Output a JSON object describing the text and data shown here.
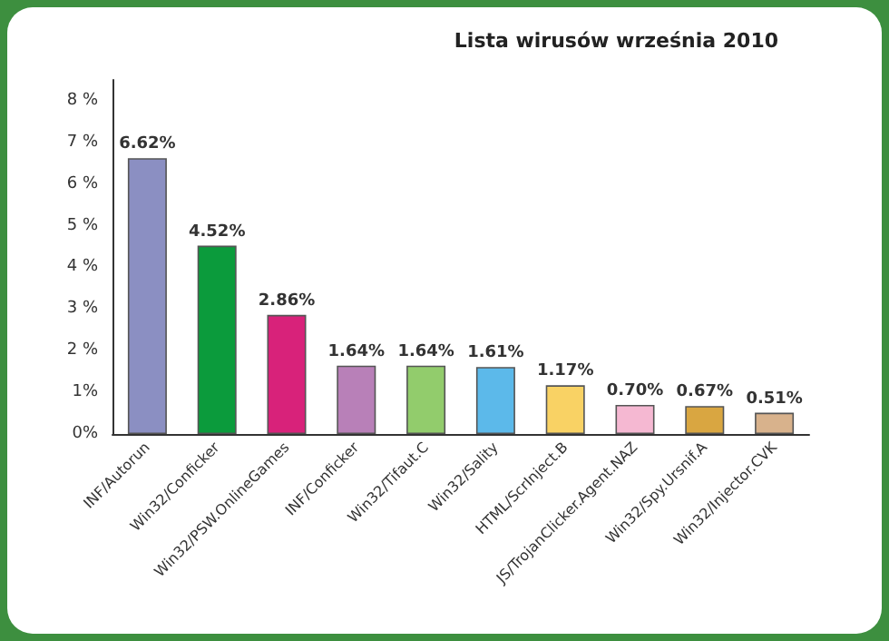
{
  "chart_data": {
    "type": "bar",
    "title": "Lista wirusów września 2010",
    "categories": [
      "INF/Autorun",
      "Win32/Conficker",
      "Win32/PSW.OnlineGames",
      "INF/Conficker",
      "Win32/Tifaut.C",
      "Win32/Sality",
      "HTML/ScrInject.B",
      "JS/TrojanClicker.Agent.NAZ",
      "Win32/Spy.Ursnif.A",
      "Win32/Injector.CVK"
    ],
    "values": [
      6.62,
      4.52,
      2.86,
      1.64,
      1.64,
      1.61,
      1.17,
      0.7,
      0.67,
      0.51
    ],
    "value_labels": [
      "6.62%",
      "4.52%",
      "2.86%",
      "1.64%",
      "1.64%",
      "1.61%",
      "1.17%",
      "0.70%",
      "0.67%",
      "0.51%"
    ],
    "colors": [
      "#8b8fc2",
      "#0b9b3c",
      "#d8227a",
      "#b880b8",
      "#92cc6c",
      "#5cb9ea",
      "#f9d264",
      "#f5b8d2",
      "#d9a641",
      "#d8b28c"
    ],
    "ylim": [
      0,
      8.5
    ],
    "yticks": [
      {
        "value": 0,
        "label": "0%"
      },
      {
        "value": 1,
        "label": "1%"
      },
      {
        "value": 2,
        "label": "2 %"
      },
      {
        "value": 3,
        "label": "3 %"
      },
      {
        "value": 4,
        "label": "4 %"
      },
      {
        "value": 5,
        "label": "5 %"
      },
      {
        "value": 6,
        "label": "6 %"
      },
      {
        "value": 7,
        "label": "7 %"
      },
      {
        "value": 8,
        "label": "8 %"
      }
    ],
    "grid": false
  }
}
